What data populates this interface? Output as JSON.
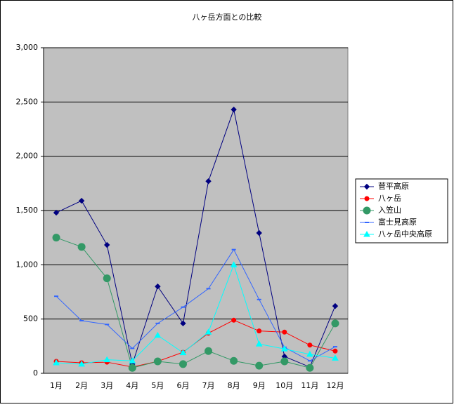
{
  "chart_data": {
    "type": "line",
    "title": "八ヶ岳方面との比較",
    "categories": [
      "1月",
      "2月",
      "3月",
      "4月",
      "5月",
      "6月",
      "7月",
      "8月",
      "9月",
      "10月",
      "11月",
      "12月"
    ],
    "series": [
      {
        "name": "菅平高原",
        "color": "#000080",
        "marker": "diamond",
        "values": [
          1480,
          1590,
          1183,
          84,
          800,
          460,
          1770,
          2430,
          1293,
          155,
          58,
          620
        ]
      },
      {
        "name": "八ヶ岳",
        "color": "#ff0000",
        "marker": "circle",
        "values": [
          110,
          97,
          103,
          58,
          110,
          194,
          370,
          490,
          390,
          380,
          260,
          205
        ]
      },
      {
        "name": "入笠山",
        "color": "#339966",
        "marker": "big-circle",
        "values": [
          1250,
          1165,
          875,
          50,
          110,
          85,
          205,
          115,
          70,
          110,
          50,
          460
        ]
      },
      {
        "name": "富士見高原",
        "color": "#3366ff",
        "marker": "dash",
        "values": [
          710,
          485,
          450,
          230,
          460,
          610,
          780,
          1140,
          680,
          240,
          115,
          245
        ]
      },
      {
        "name": "八ヶ岳中央高原",
        "color": "#00ffff",
        "marker": "triangle",
        "values": [
          97,
          85,
          125,
          115,
          350,
          190,
          380,
          1000,
          270,
          225,
          175,
          140
        ]
      }
    ],
    "ylim": [
      0,
      3000
    ],
    "yticks": [
      0,
      {
        "value": 500,
        "label": "500"
      },
      {
        "value": 1000,
        "label": "1,000"
      },
      {
        "value": 1500,
        "label": "1,500"
      },
      {
        "value": 2000,
        "label": "2,000"
      },
      {
        "value": 2500,
        "label": "2,500"
      },
      {
        "value": 3000,
        "label": "3,000"
      }
    ],
    "grid": true,
    "legend": "right"
  }
}
